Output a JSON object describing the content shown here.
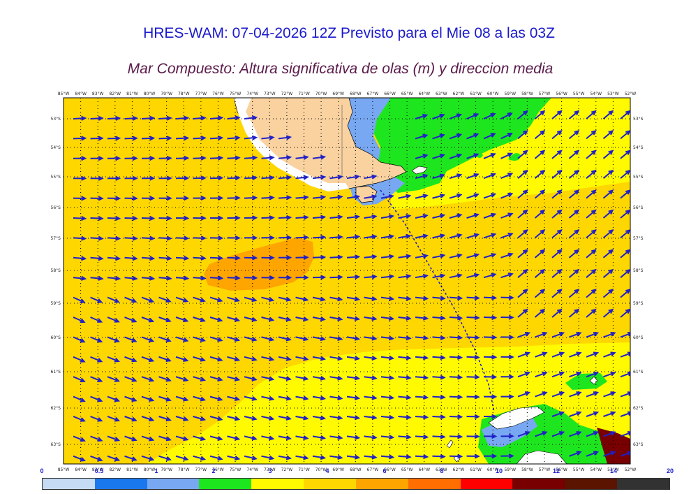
{
  "title": "HRES-WAM: 07-04-2026 12Z Previsto para el Mie 08 a las 03Z",
  "subtitle": "Mar Compuesto: Altura significativa de olas (m) y direccion media",
  "longitude_labels": [
    "85°W",
    "84°W",
    "83°W",
    "82°W",
    "81°W",
    "80°W",
    "79°W",
    "78°W",
    "77°W",
    "76°W",
    "75°W",
    "74°W",
    "73°W",
    "72°W",
    "71°W",
    "70°W",
    "69°W",
    "68°W",
    "67°W",
    "66°W",
    "65°W",
    "64°W",
    "63°W",
    "62°W",
    "61°W",
    "60°W",
    "59°W",
    "58°W",
    "57°W",
    "56°W",
    "55°W",
    "54°W",
    "53°W",
    "52°W"
  ],
  "latitude_labels": [
    "53°S",
    "54°S",
    "55°S",
    "56°S",
    "57°S",
    "58°S",
    "59°S",
    "60°S",
    "61°S",
    "62°S",
    "63°S"
  ],
  "colorbar": {
    "labels": [
      "0",
      "0.5",
      "1",
      "2",
      "3",
      "4",
      "6",
      "8",
      "10",
      "12",
      "14",
      "20"
    ],
    "colors": [
      "#c6dcf5",
      "#1978ee",
      "#78a8f2",
      "#1ee61e",
      "#fffa00",
      "#ffd700",
      "#ffa500",
      "#ff6e00",
      "#ff0000",
      "#780000",
      "#5a1400",
      "#323232"
    ]
  },
  "legend_colors": {
    "land": "#fad2a0",
    "wave_3_4": "#fffa00",
    "wave_4_6": "#ffd700",
    "wave_6_8": "#ffa500",
    "wave_2_3": "#1ee61e",
    "wave_1_2": "#78a8f2",
    "arrow": "#2020c8"
  }
}
